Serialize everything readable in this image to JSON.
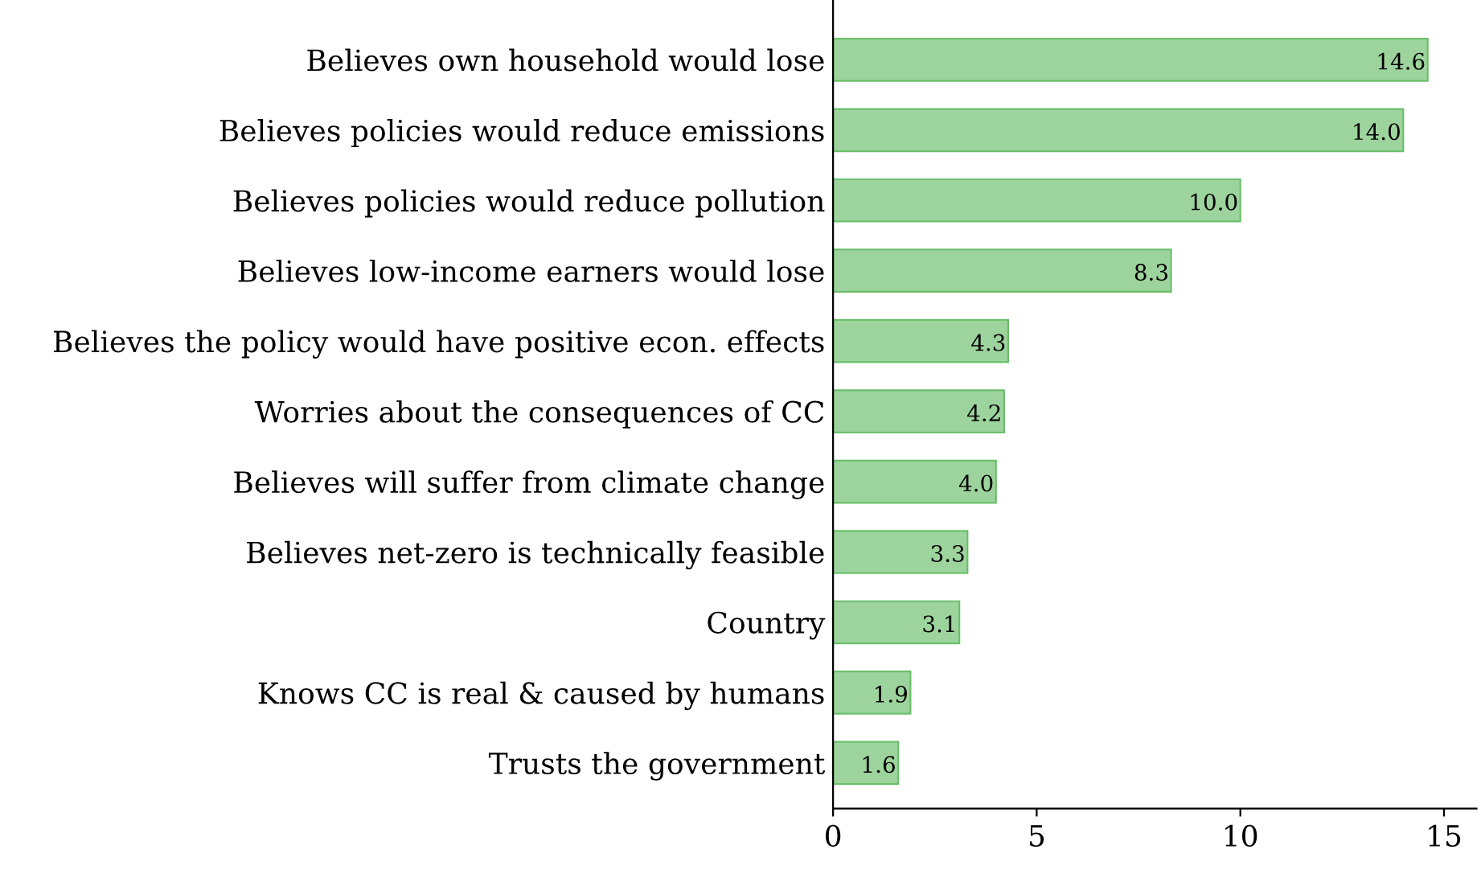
{
  "chart_data": {
    "type": "bar",
    "orientation": "horizontal",
    "categories": [
      "Believes own household would lose",
      "Believes policies would reduce emissions",
      "Believes policies would reduce pollution",
      "Believes low-income earners would lose",
      "Believes the policy would have positive econ. effects",
      "Worries about the consequences of CC",
      "Believes will suffer from climate change",
      "Believes net-zero is technically feasible",
      "Country",
      "Knows CC is real & caused by humans",
      "Trusts the government"
    ],
    "values": [
      14.6,
      14.0,
      10.0,
      8.3,
      4.3,
      4.2,
      4.0,
      3.3,
      3.1,
      1.9,
      1.6
    ],
    "color": "#9dd49d",
    "value_labels": [
      "14.6",
      "14.0",
      "10.0",
      "8.3",
      "4.3",
      "4.2",
      "4.0",
      "3.3",
      "3.1",
      "1.9",
      "1.6"
    ],
    "xlim": [
      0,
      15.8
    ],
    "xticks": [
      0,
      5,
      10,
      15
    ],
    "grid": false,
    "legend": false
  }
}
